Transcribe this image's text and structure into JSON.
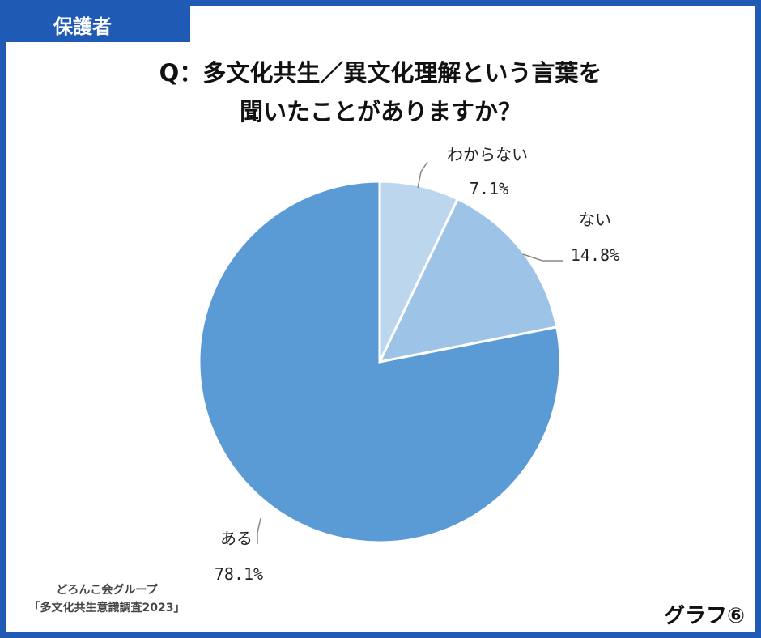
{
  "header": {
    "tag": "保護者"
  },
  "title": {
    "line1": "Q：多文化共生／異文化理解という言葉を",
    "line2": "聞いたことがありますか？"
  },
  "chart_data": {
    "type": "pie",
    "start_angle_deg": 0,
    "direction": "clockwise",
    "slices": [
      {
        "label": "わからない",
        "value": 7.1,
        "value_text": "7.1%",
        "color": "#bcd6ee"
      },
      {
        "label": "ない",
        "value": 14.8,
        "value_text": "14.8%",
        "color": "#9dc3e6"
      },
      {
        "label": "ある",
        "value": 78.1,
        "value_text": "78.1%",
        "color": "#5b9bd5"
      }
    ]
  },
  "source": {
    "line1": "どろんこ会グループ",
    "line2": "「多文化共生意識調査2023」"
  },
  "footer": {
    "graph_label": "グラフ⑥"
  }
}
